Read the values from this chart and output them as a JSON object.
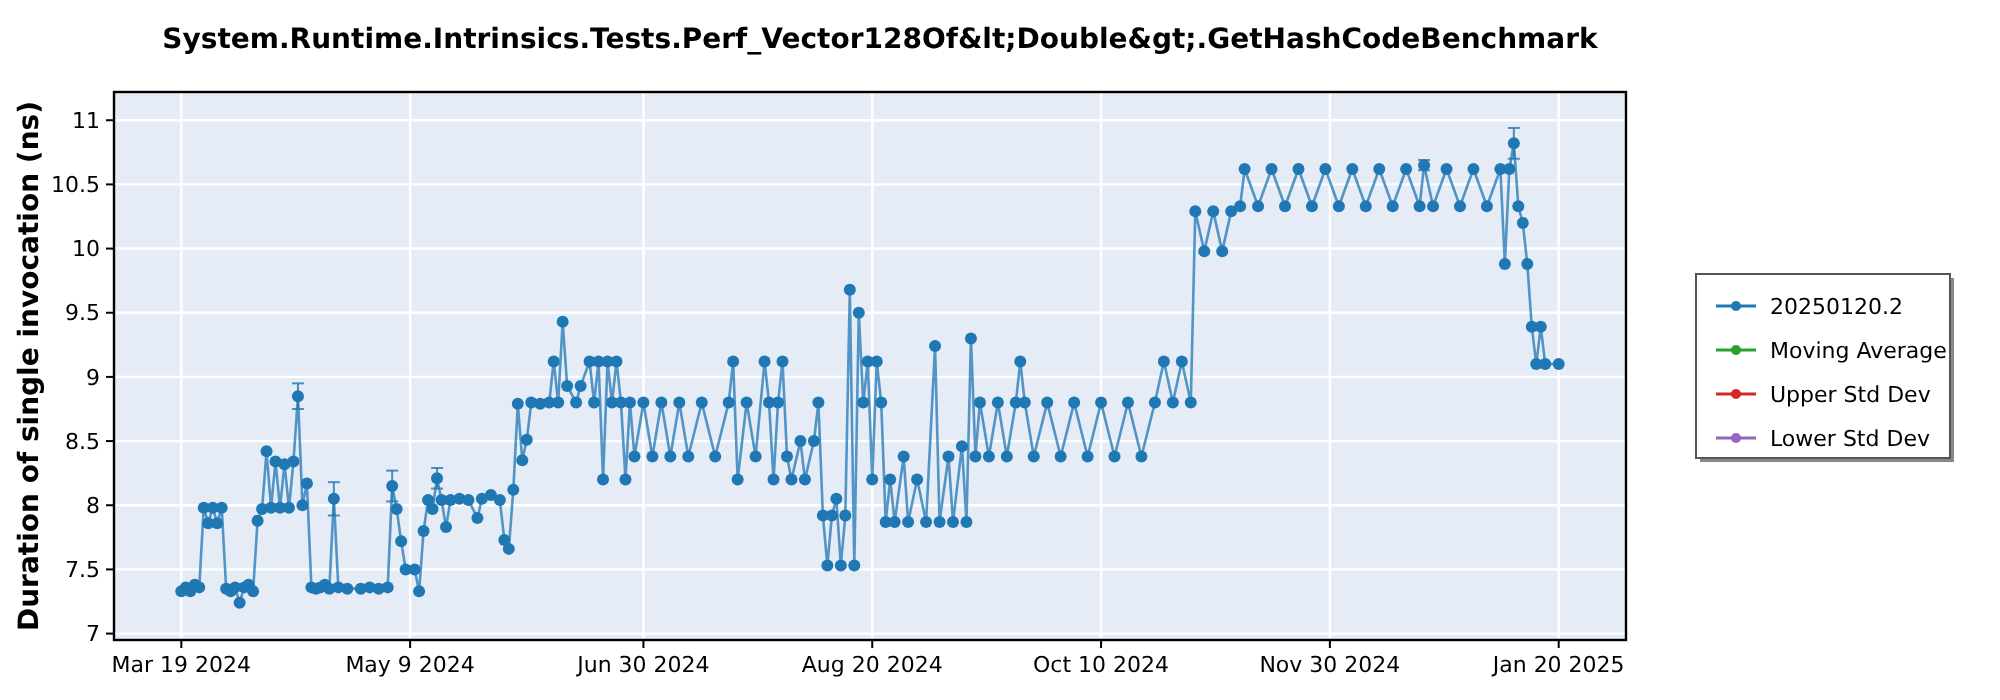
{
  "chart_data": {
    "type": "line",
    "title": "System.Runtime.Intrinsics.Tests.Perf_Vector128Of&lt;Double&gt;.GetHashCodeBenchmark",
    "ylabel": "Duration of single invocation (ns)",
    "xlim": [
      "2024-03-04",
      "2025-02-04"
    ],
    "xticks": [
      {
        "value": "2024-03-19",
        "label": "Mar 19 2024"
      },
      {
        "value": "2024-05-09",
        "label": "May 9 2024"
      },
      {
        "value": "2024-06-30",
        "label": "Jun 30 2024"
      },
      {
        "value": "2024-08-20",
        "label": "Aug 20 2024"
      },
      {
        "value": "2024-10-10",
        "label": "Oct 10 2024"
      },
      {
        "value": "2024-11-30",
        "label": "Nov 30 2024"
      },
      {
        "value": "2025-01-20",
        "label": "Jan 20 2025"
      }
    ],
    "ylim": [
      6.95,
      11.22
    ],
    "yticks": [
      7,
      7.5,
      8,
      8.5,
      9,
      9.5,
      10,
      10.5,
      11
    ],
    "grid": true,
    "legend": "right",
    "marker": "circle",
    "line_style": "solid",
    "series": [
      {
        "name": "20250120.2",
        "color": "#1f77b4",
        "x": [
          "2024-03-19",
          "2024-03-20",
          "2024-03-21",
          "2024-03-22",
          "2024-03-23",
          "2024-03-24",
          "2024-03-25",
          "2024-03-26",
          "2024-03-27",
          "2024-03-28",
          "2024-03-29",
          "2024-03-30",
          "2024-03-31",
          "2024-04-01",
          "2024-04-02",
          "2024-04-03",
          "2024-04-04",
          "2024-04-05",
          "2024-04-06",
          "2024-04-07",
          "2024-04-08",
          "2024-04-09",
          "2024-04-10",
          "2024-04-11",
          "2024-04-12",
          "2024-04-13",
          "2024-04-14",
          "2024-04-15",
          "2024-04-16",
          "2024-04-17",
          "2024-04-18",
          "2024-04-19",
          "2024-04-20",
          "2024-04-21",
          "2024-04-22",
          "2024-04-23",
          "2024-04-25",
          "2024-04-28",
          "2024-04-30",
          "2024-05-02",
          "2024-05-04",
          "2024-05-05",
          "2024-05-06",
          "2024-05-07",
          "2024-05-08",
          "2024-05-10",
          "2024-05-11",
          "2024-05-12",
          "2024-05-13",
          "2024-05-14",
          "2024-05-15",
          "2024-05-16",
          "2024-05-17",
          "2024-05-18",
          "2024-05-20",
          "2024-05-22",
          "2024-05-24",
          "2024-05-25",
          "2024-05-27",
          "2024-05-29",
          "2024-05-30",
          "2024-05-31",
          "2024-06-01",
          "2024-06-02",
          "2024-06-03",
          "2024-06-04",
          "2024-06-05",
          "2024-06-07",
          "2024-06-09",
          "2024-06-10",
          "2024-06-11",
          "2024-06-12",
          "2024-06-13",
          "2024-06-15",
          "2024-06-16",
          "2024-06-18",
          "2024-06-19",
          "2024-06-20",
          "2024-06-21",
          "2024-06-22",
          "2024-06-23",
          "2024-06-24",
          "2024-06-25",
          "2024-06-26",
          "2024-06-27",
          "2024-06-28",
          "2024-06-30",
          "2024-07-02",
          "2024-07-04",
          "2024-07-06",
          "2024-07-08",
          "2024-07-10",
          "2024-07-13",
          "2024-07-16",
          "2024-07-19",
          "2024-07-20",
          "2024-07-21",
          "2024-07-23",
          "2024-07-25",
          "2024-07-27",
          "2024-07-28",
          "2024-07-29",
          "2024-07-30",
          "2024-07-31",
          "2024-08-01",
          "2024-08-02",
          "2024-08-04",
          "2024-08-05",
          "2024-08-07",
          "2024-08-08",
          "2024-08-09",
          "2024-08-10",
          "2024-08-11",
          "2024-08-12",
          "2024-08-13",
          "2024-08-14",
          "2024-08-15",
          "2024-08-16",
          "2024-08-17",
          "2024-08-18",
          "2024-08-19",
          "2024-08-20",
          "2024-08-21",
          "2024-08-22",
          "2024-08-23",
          "2024-08-24",
          "2024-08-25",
          "2024-08-27",
          "2024-08-28",
          "2024-08-30",
          "2024-09-01",
          "2024-09-03",
          "2024-09-04",
          "2024-09-06",
          "2024-09-07",
          "2024-09-09",
          "2024-09-10",
          "2024-09-11",
          "2024-09-12",
          "2024-09-13",
          "2024-09-15",
          "2024-09-17",
          "2024-09-19",
          "2024-09-21",
          "2024-09-22",
          "2024-09-23",
          "2024-09-25",
          "2024-09-28",
          "2024-10-01",
          "2024-10-04",
          "2024-10-07",
          "2024-10-10",
          "2024-10-13",
          "2024-10-16",
          "2024-10-19",
          "2024-10-22",
          "2024-10-24",
          "2024-10-26",
          "2024-10-28",
          "2024-10-30",
          "2024-10-31",
          "2024-11-02",
          "2024-11-04",
          "2024-11-06",
          "2024-11-08",
          "2024-11-10",
          "2024-11-11",
          "2024-11-14",
          "2024-11-17",
          "2024-11-20",
          "2024-11-23",
          "2024-11-26",
          "2024-11-29",
          "2024-12-02",
          "2024-12-05",
          "2024-12-08",
          "2024-12-11",
          "2024-12-14",
          "2024-12-17",
          "2024-12-20",
          "2024-12-21",
          "2024-12-23",
          "2024-12-26",
          "2024-12-29",
          "2025-01-01",
          "2025-01-04",
          "2025-01-07",
          "2025-01-08",
          "2025-01-09",
          "2025-01-10",
          "2025-01-11",
          "2025-01-12",
          "2025-01-13",
          "2025-01-14",
          "2025-01-15",
          "2025-01-16",
          "2025-01-17",
          "2025-01-20"
        ],
        "values": [
          7.33,
          7.36,
          7.33,
          7.38,
          7.36,
          7.98,
          7.86,
          7.98,
          7.86,
          7.98,
          7.35,
          7.33,
          7.36,
          7.24,
          7.36,
          7.38,
          7.33,
          7.88,
          7.97,
          8.42,
          7.98,
          8.34,
          7.98,
          8.32,
          7.98,
          8.34,
          8.85,
          8.0,
          8.17,
          7.36,
          7.35,
          7.36,
          7.38,
          7.35,
          8.05,
          7.36,
          7.35,
          7.35,
          7.36,
          7.35,
          7.36,
          8.15,
          7.97,
          7.72,
          7.5,
          7.5,
          7.33,
          7.8,
          8.04,
          7.97,
          8.21,
          8.04,
          7.83,
          8.04,
          8.05,
          8.04,
          7.9,
          8.05,
          8.08,
          8.04,
          7.73,
          7.66,
          8.12,
          8.79,
          8.35,
          8.51,
          8.8,
          8.79,
          8.8,
          9.12,
          8.8,
          9.43,
          8.93,
          8.8,
          8.93,
          9.12,
          8.8,
          9.12,
          8.2,
          9.12,
          8.8,
          9.12,
          8.8,
          8.2,
          8.8,
          8.38,
          8.8,
          8.38,
          8.8,
          8.38,
          8.8,
          8.38,
          8.8,
          8.38,
          8.8,
          9.12,
          8.2,
          8.8,
          8.38,
          9.12,
          8.8,
          8.2,
          8.8,
          9.12,
          8.38,
          8.2,
          8.5,
          8.2,
          8.5,
          8.8,
          7.92,
          7.53,
          7.92,
          8.05,
          7.53,
          7.92,
          9.68,
          7.53,
          9.5,
          8.8,
          9.12,
          8.2,
          9.12,
          8.8,
          7.87,
          8.2,
          7.87,
          8.38,
          7.87,
          8.2,
          7.87,
          9.24,
          7.87,
          8.38,
          7.87,
          8.46,
          7.87,
          9.3,
          8.38,
          8.8,
          8.38,
          8.8,
          8.38,
          8.8,
          9.12,
          8.8,
          8.38,
          8.8,
          8.38,
          8.8,
          8.38,
          8.8,
          8.38,
          8.8,
          8.38,
          8.8,
          9.12,
          8.8,
          9.12,
          8.8,
          10.29,
          9.98,
          10.29,
          9.98,
          10.29,
          10.33,
          10.62,
          10.33,
          10.62,
          10.33,
          10.62,
          10.33,
          10.62,
          10.33,
          10.62,
          10.33,
          10.62,
          10.33,
          10.62,
          10.33,
          10.65,
          10.33,
          10.62,
          10.33,
          10.62,
          10.33,
          10.62,
          9.88,
          10.62,
          10.82,
          10.33,
          10.2,
          9.88,
          9.39,
          9.1,
          9.39,
          9.1,
          9.1
        ],
        "errors": [
          null,
          null,
          null,
          null,
          null,
          null,
          null,
          null,
          null,
          null,
          null,
          null,
          null,
          null,
          null,
          null,
          null,
          null,
          null,
          null,
          null,
          null,
          null,
          null,
          null,
          null,
          0.1,
          null,
          null,
          null,
          null,
          null,
          null,
          null,
          0.13,
          null,
          null,
          null,
          null,
          null,
          null,
          0.12,
          null,
          null,
          null,
          null,
          null,
          null,
          null,
          null,
          0.08,
          null,
          null,
          null,
          null,
          null,
          null,
          null,
          null,
          null,
          null,
          null,
          null,
          null,
          null,
          null,
          null,
          null,
          null,
          null,
          null,
          null,
          null,
          null,
          null,
          null,
          null,
          null,
          null,
          null,
          null,
          null,
          null,
          null,
          null,
          null,
          null,
          null,
          null,
          null,
          null,
          null,
          null,
          null,
          null,
          null,
          null,
          null,
          null,
          null,
          null,
          null,
          null,
          null,
          null,
          null,
          null,
          null,
          null,
          null,
          null,
          null,
          null,
          null,
          null,
          null,
          null,
          null,
          null,
          null,
          null,
          null,
          null,
          null,
          null,
          null,
          null,
          null,
          null,
          null,
          null,
          null,
          null,
          null,
          null,
          null,
          null,
          null,
          null,
          null,
          null,
          null,
          null,
          null,
          null,
          null,
          null,
          null,
          null,
          null,
          null,
          null,
          null,
          null,
          null,
          null,
          null,
          null,
          null,
          null,
          null,
          null,
          null,
          null,
          null,
          null,
          null,
          null,
          null,
          null,
          null,
          null,
          null,
          null,
          null,
          null,
          null,
          null,
          null,
          null,
          0.04,
          null,
          null,
          null,
          null,
          null,
          null,
          null,
          null,
          0.12,
          null,
          null,
          null,
          null,
          null,
          null,
          null,
          null
        ]
      },
      {
        "name": "Moving Average",
        "color": "#2ca02c"
      },
      {
        "name": "Upper Std Dev",
        "color": "#d62728"
      },
      {
        "name": "Lower Std Dev",
        "color": "#9467bd"
      }
    ]
  }
}
